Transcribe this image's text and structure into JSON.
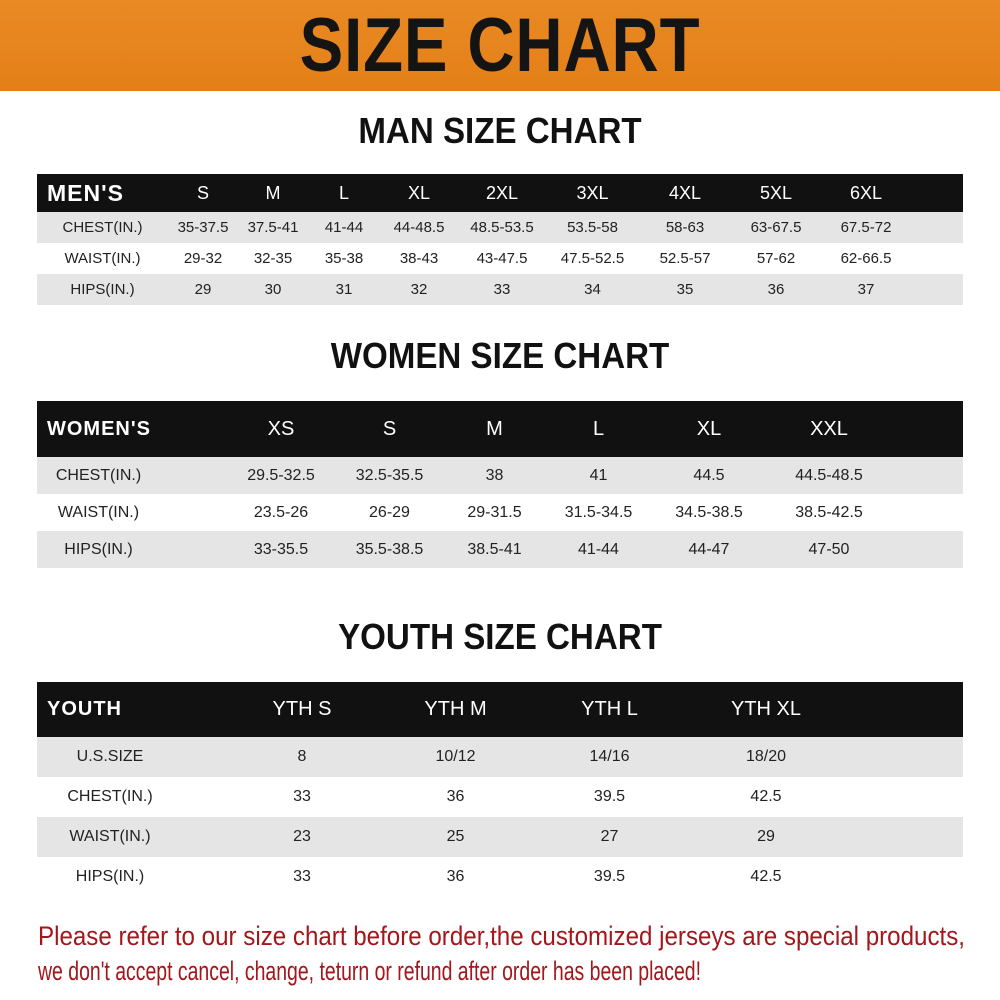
{
  "banner": {
    "title": "SIZE CHART",
    "color": "#e8821e"
  },
  "men": {
    "title": "MAN SIZE CHART",
    "header": [
      "MEN'S",
      "S",
      "M",
      "L",
      "XL",
      "2XL",
      "3XL",
      "4XL",
      "5XL",
      "6XL"
    ],
    "rows": [
      [
        "CHEST(IN.)",
        "35-37.5",
        "37.5-41",
        "41-44",
        "44-48.5",
        "48.5-53.5",
        "53.5-58",
        "58-63",
        "63-67.5",
        "67.5-72"
      ],
      [
        "WAIST(IN.)",
        "29-32",
        "32-35",
        "35-38",
        "38-43",
        "43-47.5",
        "47.5-52.5",
        "52.5-57",
        "57-62",
        "62-66.5"
      ],
      [
        "HIPS(IN.)",
        "29",
        "30",
        "31",
        "32",
        "33",
        "34",
        "35",
        "36",
        "37"
      ]
    ]
  },
  "women": {
    "title": "WOMEN SIZE CHART",
    "header": [
      "WOMEN'S",
      "XS",
      "S",
      "M",
      "L",
      "XL",
      "XXL"
    ],
    "rows": [
      [
        "CHEST(IN.)",
        "29.5-32.5",
        "32.5-35.5",
        "38",
        "41",
        "44.5",
        "44.5-48.5"
      ],
      [
        "WAIST(IN.)",
        "23.5-26",
        "26-29",
        "29-31.5",
        "31.5-34.5",
        "34.5-38.5",
        "38.5-42.5"
      ],
      [
        "HIPS(IN.)",
        "33-35.5",
        "35.5-38.5",
        "38.5-41",
        "41-44",
        "44-47",
        "47-50"
      ]
    ]
  },
  "youth": {
    "title": "YOUTH SIZE CHART",
    "header": [
      "YOUTH",
      "YTH S",
      "YTH M",
      "YTH L",
      "YTH XL"
    ],
    "rows": [
      [
        "U.S.SIZE",
        "8",
        "10/12",
        "14/16",
        "18/20"
      ],
      [
        "CHEST(IN.)",
        "33",
        "36",
        "39.5",
        "42.5"
      ],
      [
        "WAIST(IN.)",
        "23",
        "25",
        "27",
        "29"
      ],
      [
        "HIPS(IN.)",
        "33",
        "36",
        "39.5",
        "42.5"
      ]
    ]
  },
  "notice": {
    "line1": "Please refer to our size chart before order,the customized jerseys are special products,",
    "line2": "we don't accept cancel, change, teturn or refund after order has been placed!",
    "color": "#a3161b"
  }
}
